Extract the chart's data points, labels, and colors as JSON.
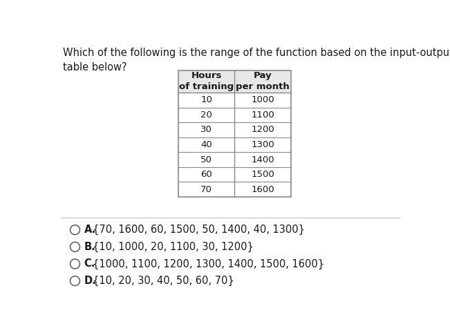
{
  "question": "Which of the following is the range of the function based on the input-output\ntable below?",
  "col1_header": "Hours\nof training",
  "col2_header": "Pay\nper month",
  "col1_data": [
    10,
    20,
    30,
    40,
    50,
    60,
    70
  ],
  "col2_data": [
    1000,
    1100,
    1200,
    1300,
    1400,
    1500,
    1600
  ],
  "options": [
    {
      "letter": "A.",
      "text": "{70, 1600, 60, 1500, 50, 1400, 40, 1300}"
    },
    {
      "letter": "B.",
      "text": "{10, 1000, 20, 1100, 30, 1200}"
    },
    {
      "letter": "C.",
      "text": "{1000, 1100, 1200, 1300, 1400, 1500, 1600}"
    },
    {
      "letter": "D.",
      "text": "{10, 20, 30, 40, 50, 60, 70}"
    }
  ],
  "background_color": "#ffffff",
  "text_color": "#1a1a1a",
  "table_border_color": "#888888",
  "table_header_bg": "#e8e8e8",
  "separator_line_color": "#c0c0c0",
  "circle_color": "#666666",
  "font_size_question": 10.5,
  "font_size_table_header": 9.5,
  "font_size_table_data": 9.5,
  "font_size_options": 10.5
}
